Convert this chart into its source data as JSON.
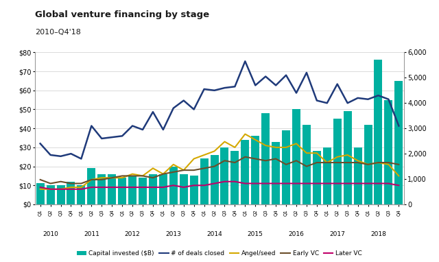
{
  "title": "Global venture financing by stage",
  "subtitle": "2010–Q4'18",
  "quarters": [
    "Q1",
    "Q2",
    "Q3",
    "Q4",
    "Q1",
    "Q2",
    "Q3",
    "Q4",
    "Q1",
    "Q2",
    "Q3",
    "Q4",
    "Q1",
    "Q2",
    "Q3",
    "Q4",
    "Q1",
    "Q2",
    "Q3",
    "Q4",
    "Q1",
    "Q2",
    "Q3",
    "Q4",
    "Q1",
    "Q2",
    "Q3",
    "Q4",
    "Q1",
    "Q2",
    "Q3",
    "Q4",
    "Q1",
    "Q2",
    "Q3",
    "Q4"
  ],
  "year_labels": [
    "2010",
    "2011",
    "2012",
    "2013",
    "2014",
    "2015",
    "2016",
    "2017",
    "2018"
  ],
  "year_tick_positions": [
    1.5,
    5.5,
    9.5,
    13.5,
    17.5,
    21.5,
    25.5,
    29.5,
    33.5
  ],
  "capital_invested": [
    11,
    10,
    10,
    12,
    10,
    19,
    16,
    16,
    14,
    15,
    14,
    16,
    16,
    20,
    16,
    15,
    24,
    26,
    30,
    28,
    34,
    36,
    48,
    33,
    39,
    50,
    42,
    28,
    30,
    45,
    49,
    30,
    42,
    76,
    55,
    65
  ],
  "deals_closed": [
    2400,
    1950,
    1900,
    2000,
    1800,
    3100,
    2600,
    2650,
    2700,
    3100,
    2950,
    3650,
    2950,
    3800,
    4100,
    3750,
    4550,
    4500,
    4600,
    4650,
    5650,
    4700,
    5050,
    4700,
    5100,
    4400,
    5200,
    4100,
    4000,
    4750,
    4000,
    4200,
    4150,
    4300,
    4150,
    3100
  ],
  "angel_seed": [
    8,
    8,
    8,
    9,
    9,
    13,
    14,
    14,
    14,
    16,
    15,
    19,
    16,
    21,
    18,
    24,
    26,
    28,
    33,
    30,
    37,
    34,
    31,
    30,
    30,
    32,
    27,
    27,
    22,
    25,
    26,
    23,
    21,
    22,
    21,
    15
  ],
  "early_vc": [
    13,
    11,
    12,
    11,
    11,
    13,
    13,
    14,
    15,
    15,
    15,
    14,
    16,
    17,
    18,
    18,
    19,
    20,
    23,
    22,
    25,
    24,
    23,
    24,
    21,
    23,
    20,
    22,
    22,
    22,
    22,
    22,
    21,
    22,
    22,
    21
  ],
  "later_vc": [
    9,
    8,
    8,
    8,
    8,
    9,
    9,
    9,
    9,
    9,
    9,
    9,
    9,
    10,
    9,
    10,
    10,
    11,
    12,
    12,
    11,
    11,
    11,
    11,
    11,
    11,
    11,
    11,
    11,
    11,
    11,
    11,
    11,
    11,
    11,
    10
  ],
  "bar_color": "#00B0A0",
  "deals_color": "#1F3A7A",
  "angel_color": "#D4A800",
  "early_color": "#6B4E2A",
  "later_color": "#C0006A",
  "ylim_left": [
    0,
    80
  ],
  "ylim_right": [
    0,
    6000
  ],
  "yticks_left": [
    0,
    10,
    20,
    30,
    40,
    50,
    60,
    70,
    80
  ],
  "yticks_right": [
    0,
    1000,
    2000,
    3000,
    4000,
    5000,
    6000
  ],
  "bg_color": "#FFFFFF",
  "grid_color": "#CCCCCC"
}
